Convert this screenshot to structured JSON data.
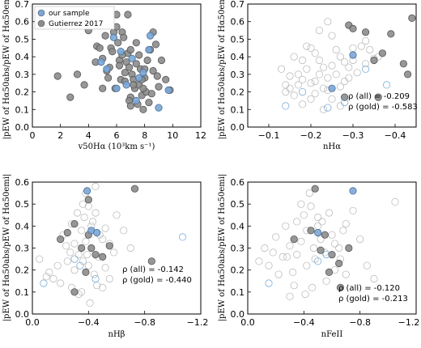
{
  "colors": {
    "sample": "#7aa6d6",
    "gutierrez": "#8c8c8c",
    "sample_open": "#7aaed8",
    "gold_filled_blue": "#6a96c8",
    "gold_filled_gray": "#777777",
    "open_gray": "#bdbdbd"
  },
  "legend": {
    "items": [
      "our sample",
      "Gutierrez 2017"
    ]
  },
  "chart_data": [
    {
      "type": "scatter",
      "title": "",
      "xlabel": "v50Hα (10³km s⁻¹)",
      "ylabel": "|pEW of Hα50abs/pEW of Hα50emi|",
      "xlim": [
        0,
        12
      ],
      "ylim": [
        0,
        0.7
      ],
      "xticks": [
        "0",
        "2",
        "4",
        "6",
        "8",
        "10",
        "12"
      ],
      "yticks": [
        "0.0",
        "0.1",
        "0.2",
        "0.3",
        "0.4",
        "0.5",
        "0.6",
        "0.7"
      ],
      "legend_position": "top-left",
      "series": [
        {
          "name": "Gutierrez 2017",
          "marker": "filled-gray",
          "x": [
            1.8,
            2.7,
            3.2,
            3.7,
            4.0,
            4.5,
            4.6,
            4.8,
            5.0,
            5.0,
            5.2,
            5.3,
            5.5,
            5.6,
            5.8,
            5.9,
            6.0,
            6.1,
            6.2,
            6.3,
            6.4,
            6.5,
            6.6,
            6.7,
            6.8,
            6.9,
            7.0,
            7.0,
            7.1,
            7.2,
            7.3,
            7.4,
            7.5,
            7.6,
            7.7,
            7.8,
            7.9,
            8.0,
            8.1,
            8.2,
            8.3,
            8.4,
            8.5,
            8.6,
            8.8,
            9.0,
            9.2,
            9.5,
            9.8,
            6.0,
            6.8,
            7.6,
            5.4,
            7.2,
            8.0,
            6.4,
            5.0,
            6.9,
            7.8,
            8.6,
            6.2,
            7.4,
            5.7,
            4.4,
            8.9,
            7.0,
            6.6,
            7.9
          ],
          "y": [
            0.29,
            0.17,
            0.3,
            0.24,
            0.55,
            0.37,
            0.46,
            0.45,
            0.39,
            0.59,
            0.52,
            0.32,
            0.34,
            0.45,
            0.54,
            0.22,
            0.64,
            0.48,
            0.38,
            0.27,
            0.54,
            0.51,
            0.31,
            0.37,
            0.42,
            0.34,
            0.17,
            0.44,
            0.3,
            0.27,
            0.22,
            0.36,
            0.13,
            0.24,
            0.33,
            0.18,
            0.1,
            0.28,
            0.2,
            0.38,
            0.14,
            0.44,
            0.19,
            0.54,
            0.47,
            0.23,
            0.38,
            0.27,
            0.21,
            0.57,
            0.64,
            0.41,
            0.28,
            0.24,
            0.33,
            0.41,
            0.22,
            0.15,
            0.27,
            0.32,
            0.35,
            0.48,
            0.43,
            0.62,
            0.29,
            0.12,
            0.26,
            0.22
          ]
        },
        {
          "name": "our sample",
          "marker": "filled-blue",
          "x": [
            4.9,
            5.8,
            6.0,
            6.7,
            7.1,
            7.4,
            7.6,
            8.3,
            8.4,
            9.0,
            9.7,
            5.3,
            6.3,
            7.9
          ],
          "y": [
            0.37,
            0.51,
            0.22,
            0.24,
            0.39,
            0.15,
            0.28,
            0.44,
            0.52,
            0.11,
            0.21,
            0.33,
            0.43,
            0.31
          ]
        }
      ]
    },
    {
      "type": "scatter",
      "title": "",
      "xlabel": "nHα",
      "ylabel": "|pEW of Hα50abs/pEW of Hα50emi|",
      "xlim": [
        -0.05,
        -0.45
      ],
      "ylim": [
        0,
        0.7
      ],
      "xticks": [
        "−0.1",
        "−0.2",
        "−0.3",
        "−0.4"
      ],
      "yticks": [
        "0.0",
        "0.1",
        "0.2",
        "0.3",
        "0.4",
        "0.5",
        "0.6",
        "0.7"
      ],
      "annotations": [
        "ρ (all) = -0.209",
        "ρ (gold) = -0.583"
      ],
      "series": [
        {
          "name": "",
          "marker": "open-gray",
          "x": [
            -0.13,
            -0.14,
            -0.15,
            -0.15,
            -0.16,
            -0.17,
            -0.17,
            -0.18,
            -0.18,
            -0.19,
            -0.2,
            -0.2,
            -0.21,
            -0.21,
            -0.22,
            -0.22,
            -0.23,
            -0.23,
            -0.24,
            -0.24,
            -0.25,
            -0.25,
            -0.26,
            -0.26,
            -0.27,
            -0.27,
            -0.28,
            -0.28,
            -0.29,
            -0.3,
            -0.31,
            -0.32,
            -0.33,
            -0.34,
            -0.35,
            -0.36,
            -0.2,
            -0.19,
            -0.25,
            -0.29,
            -0.3,
            -0.22,
            -0.18,
            -0.24,
            -0.27,
            -0.33,
            -0.21,
            -0.16,
            -0.14,
            -0.23
          ],
          "y": [
            0.33,
            0.2,
            0.29,
            0.22,
            0.4,
            0.3,
            0.24,
            0.27,
            0.38,
            0.33,
            0.25,
            0.45,
            0.19,
            0.42,
            0.3,
            0.38,
            0.22,
            0.34,
            0.28,
            0.6,
            0.35,
            0.16,
            0.44,
            0.3,
            0.12,
            0.4,
            0.26,
            0.37,
            0.34,
            0.45,
            0.31,
            0.46,
            0.36,
            0.44,
            0.39,
            0.4,
            0.16,
            0.46,
            0.52,
            0.28,
            0.38,
            0.55,
            0.13,
            0.21,
            0.23,
            0.49,
            0.26,
            0.18,
            0.24,
            0.1
          ]
        },
        {
          "name": "",
          "marker": "filled-gray",
          "x": [
            -0.29,
            -0.3,
            -0.33,
            -0.35,
            -0.37,
            -0.39,
            -0.42,
            -0.43,
            -0.44,
            -0.36,
            -0.28
          ],
          "y": [
            0.58,
            0.56,
            0.54,
            0.38,
            0.42,
            0.53,
            0.36,
            0.3,
            0.62,
            0.17,
            0.17
          ]
        },
        {
          "name": "",
          "marker": "filled-blue",
          "x": [
            -0.25,
            -0.3
          ],
          "y": [
            0.22,
            0.41
          ]
        },
        {
          "name": "",
          "marker": "open-blue",
          "x": [
            -0.14,
            -0.18,
            -0.24,
            -0.28,
            -0.33,
            -0.38
          ],
          "y": [
            0.12,
            0.2,
            0.11,
            0.14,
            0.33,
            0.24
          ]
        }
      ]
    },
    {
      "type": "scatter",
      "title": "",
      "xlabel": "nHβ",
      "ylabel": "|pEW of Hα50abs/pEW of Hα50emi|",
      "xlim": [
        0.0,
        -1.2
      ],
      "ylim": [
        0,
        0.6
      ],
      "xticks": [
        "0.0",
        "−0.4",
        "−0.8",
        "−1.2"
      ],
      "yticks": [
        "0.0",
        "0.1",
        "0.2",
        "0.3",
        "0.4",
        "0.5",
        "0.6"
      ],
      "annotations": [
        "ρ (all) = -0.142",
        "ρ (gold) = -0.440"
      ],
      "series": [
        {
          "name": "",
          "marker": "open-gray",
          "x": [
            -0.05,
            -0.1,
            -0.12,
            -0.15,
            -0.18,
            -0.2,
            -0.22,
            -0.25,
            -0.27,
            -0.28,
            -0.3,
            -0.3,
            -0.32,
            -0.33,
            -0.35,
            -0.35,
            -0.37,
            -0.38,
            -0.4,
            -0.4,
            -0.42,
            -0.42,
            -0.44,
            -0.45,
            -0.47,
            -0.48,
            -0.5,
            -0.52,
            -0.55,
            -0.58,
            -0.6,
            -0.65,
            -0.7,
            -0.38,
            -0.36,
            -0.43,
            -0.45,
            -0.41,
            -0.33,
            -0.5,
            -0.55,
            -0.28,
            -0.24,
            -0.46,
            -0.39,
            -0.52,
            -0.36
          ],
          "y": [
            0.25,
            0.17,
            0.19,
            0.16,
            0.22,
            0.14,
            0.36,
            0.24,
            0.28,
            0.41,
            0.32,
            0.2,
            0.46,
            0.27,
            0.38,
            0.1,
            0.44,
            0.33,
            0.49,
            0.22,
            0.4,
            0.3,
            0.18,
            0.46,
            0.26,
            0.36,
            0.34,
            0.21,
            0.32,
            0.28,
            0.45,
            0.38,
            0.3,
            0.55,
            0.5,
            0.42,
            0.58,
            0.05,
            0.09,
            0.12,
            0.16,
            0.12,
            0.31,
            0.13,
            0.27,
            0.39,
            0.24
          ]
        },
        {
          "name": "",
          "marker": "filled-gray",
          "x": [
            -0.2,
            -0.25,
            -0.3,
            -0.35,
            -0.38,
            -0.4,
            -0.42,
            -0.45,
            -0.5,
            -0.55,
            -0.73,
            -0.85,
            -0.3,
            -0.4
          ],
          "y": [
            0.34,
            0.37,
            0.41,
            0.3,
            0.19,
            0.36,
            0.3,
            0.27,
            0.26,
            0.31,
            0.57,
            0.24,
            0.1,
            0.52
          ]
        },
        {
          "name": "",
          "marker": "filled-blue",
          "x": [
            -0.39,
            -0.42,
            -0.46
          ],
          "y": [
            0.56,
            0.38,
            0.37
          ]
        },
        {
          "name": "",
          "marker": "open-blue",
          "x": [
            -0.08,
            -0.3,
            -0.34,
            -0.45,
            -1.07
          ],
          "y": [
            0.14,
            0.25,
            0.22,
            0.16,
            0.35
          ]
        }
      ]
    },
    {
      "type": "scatter",
      "title": "",
      "xlabel": "nFeII",
      "ylabel": "|pEW of Hα50abs/pEW of Hα50emi|",
      "xlim": [
        0.0,
        -1.2
      ],
      "ylim": [
        0,
        0.6
      ],
      "xticks": [
        "0.0",
        "−0.4",
        "−0.8",
        "−1.2"
      ],
      "yticks": [
        "0.0",
        "0.1",
        "0.2",
        "0.3",
        "0.4",
        "0.5",
        "0.6"
      ],
      "annotations": [
        "ρ (all) = -0.120",
        "ρ (gold) = -0.213"
      ],
      "series": [
        {
          "name": "",
          "marker": "open-gray",
          "x": [
            -0.08,
            -0.12,
            -0.15,
            -0.18,
            -0.2,
            -0.22,
            -0.25,
            -0.27,
            -0.3,
            -0.32,
            -0.35,
            -0.35,
            -0.38,
            -0.4,
            -0.42,
            -0.42,
            -0.45,
            -0.47,
            -0.48,
            -0.5,
            -0.52,
            -0.55,
            -0.58,
            -0.6,
            -0.62,
            -0.65,
            -0.68,
            -0.7,
            -0.75,
            -0.8,
            -0.85,
            -0.9,
            -1.05,
            -0.44,
            -0.38,
            -0.5,
            -0.56,
            -0.46,
            -0.3,
            -0.62,
            -0.66,
            -0.33,
            -0.28,
            -0.53,
            -0.41,
            -0.7
          ],
          "y": [
            0.24,
            0.3,
            0.22,
            0.28,
            0.35,
            0.18,
            0.26,
            0.4,
            0.31,
            0.19,
            0.42,
            0.27,
            0.33,
            0.45,
            0.22,
            0.38,
            0.49,
            0.3,
            0.25,
            0.4,
            0.34,
            0.28,
            0.46,
            0.36,
            0.32,
            0.3,
            0.38,
            0.41,
            0.47,
            0.34,
            0.22,
            0.16,
            0.51,
            0.55,
            0.5,
            0.44,
            0.15,
            0.12,
            0.08,
            0.2,
            0.25,
            0.13,
            0.26,
            0.42,
            0.09,
            0.18
          ]
        },
        {
          "name": "",
          "marker": "filled-gray",
          "x": [
            -0.33,
            -0.45,
            -0.48,
            -0.52,
            -0.58,
            -0.6,
            -0.66,
            -0.72,
            -0.55,
            -0.65
          ],
          "y": [
            0.34,
            0.38,
            0.57,
            0.29,
            0.19,
            0.27,
            0.12,
            0.3,
            0.36,
            0.23
          ]
        },
        {
          "name": "",
          "marker": "filled-blue",
          "x": [
            -0.5,
            -0.75
          ],
          "y": [
            0.37,
            0.56
          ]
        },
        {
          "name": "",
          "marker": "open-blue",
          "x": [
            -0.15,
            -0.5,
            -0.56
          ],
          "y": [
            0.14,
            0.24,
            0.27
          ]
        }
      ]
    }
  ]
}
